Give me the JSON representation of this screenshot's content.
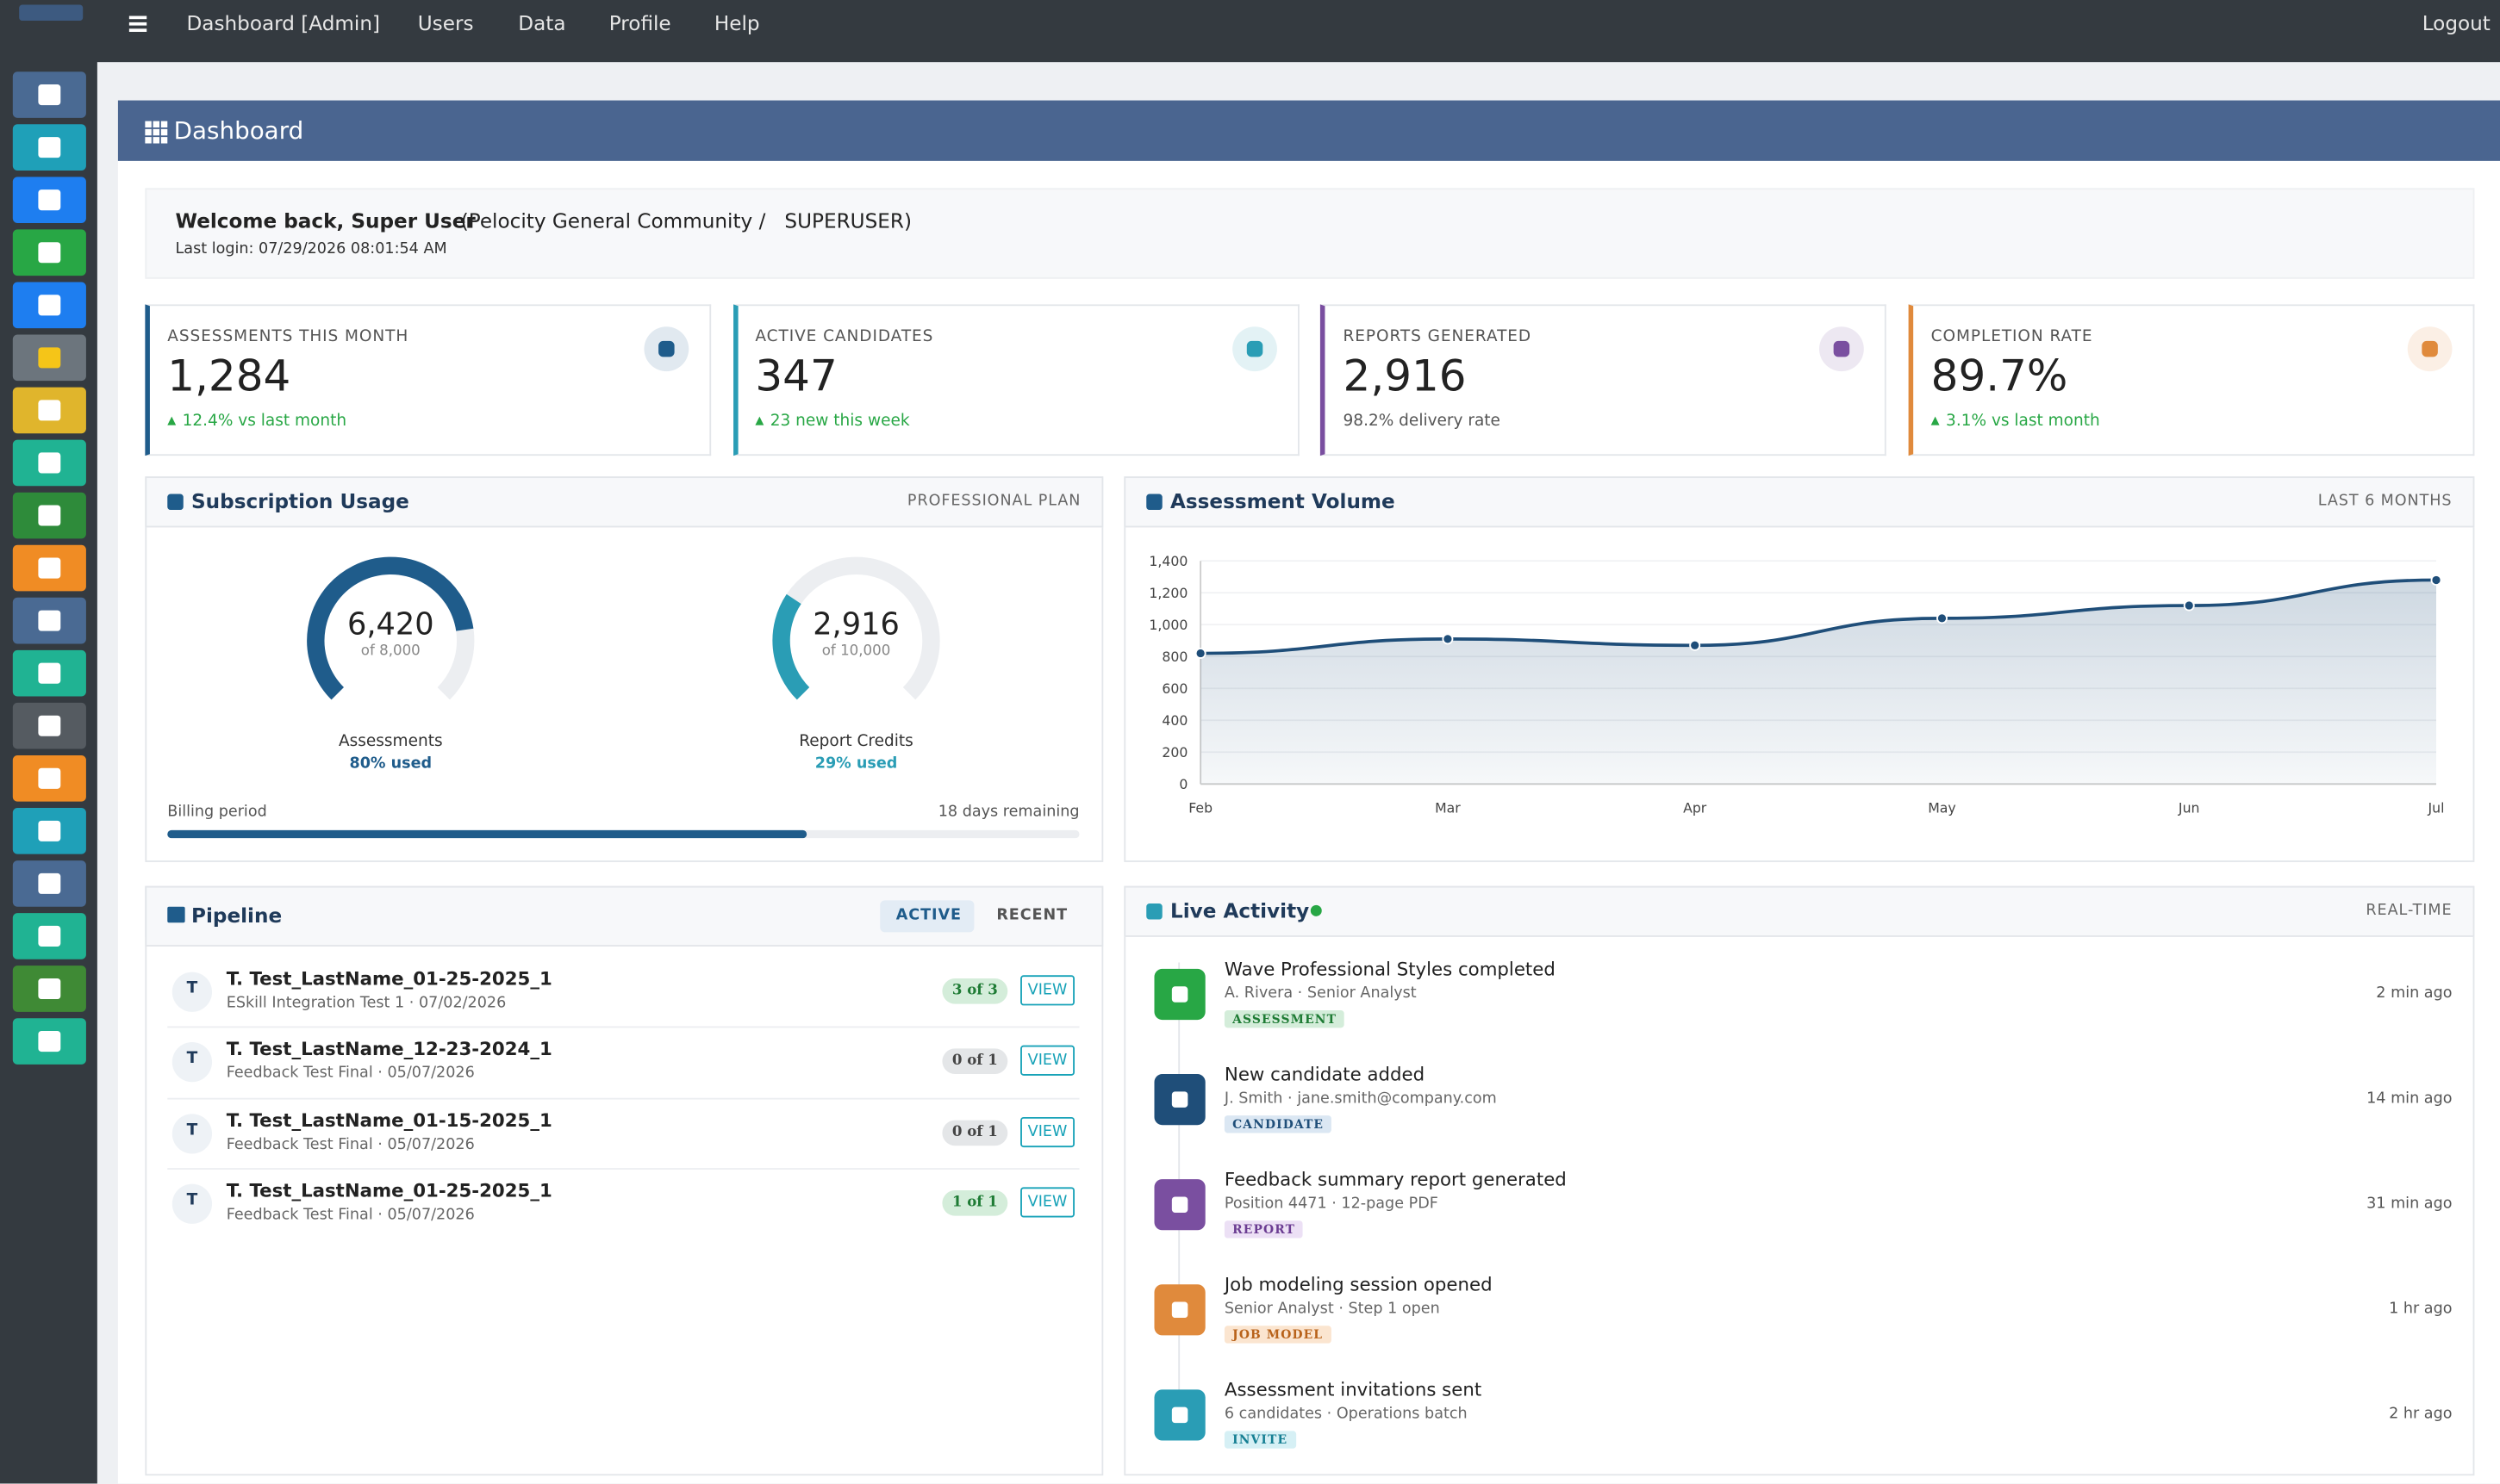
{
  "topnav": {
    "items": [
      "Dashboard [Admin]",
      "Users",
      "Data",
      "Profile",
      "Help"
    ],
    "logout": "Logout"
  },
  "page": {
    "title": "Dashboard"
  },
  "welcome": {
    "greeting": "Welcome back, Super User",
    "org": "(Pelocity General Community /   SUPERUSER)",
    "last_login": "Last login: 07/29/2026 08:01:54 AM"
  },
  "stats": [
    {
      "label": "ASSESSMENTS THIS MONTH",
      "value": "1,284",
      "delta": "12.4% vs last month",
      "up": true,
      "color": "#1f5c8b"
    },
    {
      "label": "ACTIVE CANDIDATES",
      "value": "347",
      "delta": "23 new this week",
      "up": true,
      "color": "#2a9db5"
    },
    {
      "label": "REPORTS GENERATED",
      "value": "2,916",
      "delta": "98.2% delivery rate",
      "up": false,
      "color": "#7a4fa0"
    },
    {
      "label": "COMPLETION RATE",
      "value": "89.7%",
      "delta": "3.1% vs last month",
      "up": true,
      "color": "#e08a3c"
    }
  ],
  "subscription": {
    "title": "Subscription Usage",
    "plan": "PROFESSIONAL PLAN",
    "gauges": [
      {
        "name": "Assessments",
        "value": 6420,
        "value_label": "6,420",
        "max": 8000,
        "max_label": "of 8,000",
        "used": "80% used",
        "color": "#1f5c8b"
      },
      {
        "name": "Report Credits",
        "value": 2916,
        "value_label": "2,916",
        "max": 10000,
        "max_label": "of 10,000",
        "used": "29% used",
        "color": "#2a9db5"
      }
    ],
    "billing": {
      "label": "Billing period",
      "remaining": "18 days remaining"
    }
  },
  "volume": {
    "title": "Assessment Volume",
    "range": "LAST 6 MONTHS",
    "chart": {
      "type": "area",
      "categories": [
        "Feb",
        "Mar",
        "Apr",
        "May",
        "Jun",
        "Jul"
      ],
      "values": [
        820,
        910,
        870,
        1040,
        1120,
        1280
      ],
      "color": "#1f4e79",
      "ylim": [
        0,
        1400
      ],
      "yticks": [
        0,
        200,
        400,
        600,
        800,
        {
          "value": 1000,
          "label": "1,000"
        },
        {
          "value": 1200,
          "label": "1,200"
        },
        {
          "value": 1400,
          "label": "1,400"
        }
      ],
      "grid": true
    }
  },
  "pipeline": {
    "title": "Pipeline",
    "tabs": [
      "ACTIVE",
      "RECENT"
    ],
    "rows": [
      {
        "initial": "T",
        "name": "T. Test_LastName_01-25-2025_1",
        "sub": "ESkill Integration Test 1 · 07/02/2026",
        "badge": "3 of 3",
        "complete": true,
        "action": "VIEW"
      },
      {
        "initial": "T",
        "name": "T. Test_LastName_12-23-2024_1",
        "sub": "Feedback Test Final · 05/07/2026",
        "badge": "0 of 1",
        "complete": false,
        "action": "VIEW"
      },
      {
        "initial": "T",
        "name": "T. Test_LastName_01-15-2025_1",
        "sub": "Feedback Test Final · 05/07/2026",
        "badge": "0 of 1",
        "complete": false,
        "action": "VIEW"
      },
      {
        "initial": "T",
        "name": "T. Test_LastName_01-25-2025_1",
        "sub": "Feedback Test Final · 05/07/2026",
        "badge": "1 of 1",
        "complete": true,
        "action": "VIEW"
      }
    ]
  },
  "activity": {
    "title": "Live Activity",
    "status": "REAL-TIME",
    "items": [
      {
        "title": "Wave Professional Styles completed",
        "sub": "A. Rivera · Senior Analyst",
        "tag": "ASSESSMENT",
        "time": "2 min ago",
        "color": "#28a745",
        "tag_bg": "#d4edda",
        "tag_color": "#1e7b34"
      },
      {
        "title": "New candidate added",
        "sub": "J. Smith · jane.smith@company.com",
        "tag": "CANDIDATE",
        "time": "14 min ago",
        "color": "#1f4e79",
        "tag_bg": "#dbe7f3",
        "tag_color": "#1f4e79"
      },
      {
        "title": "Feedback summary report generated",
        "sub": "Position 4471 · 12-page PDF",
        "tag": "REPORT",
        "time": "31 min ago",
        "color": "#7a4fa0",
        "tag_bg": "#ece0f5",
        "tag_color": "#6b3d92"
      },
      {
        "title": "Job modeling session opened",
        "sub": "Senior Analyst · Step 1 open",
        "tag": "JOB MODEL",
        "time": "1 hr ago",
        "color": "#e08a3c",
        "tag_bg": "#fbe5d0",
        "tag_color": "#b8621a"
      },
      {
        "title": "Assessment invitations sent",
        "sub": "6 candidates · Operations batch",
        "tag": "INVITE",
        "time": "2 hr ago",
        "color": "#2a9db5",
        "tag_bg": "#d6f0f5",
        "tag_color": "#167f93"
      }
    ]
  }
}
